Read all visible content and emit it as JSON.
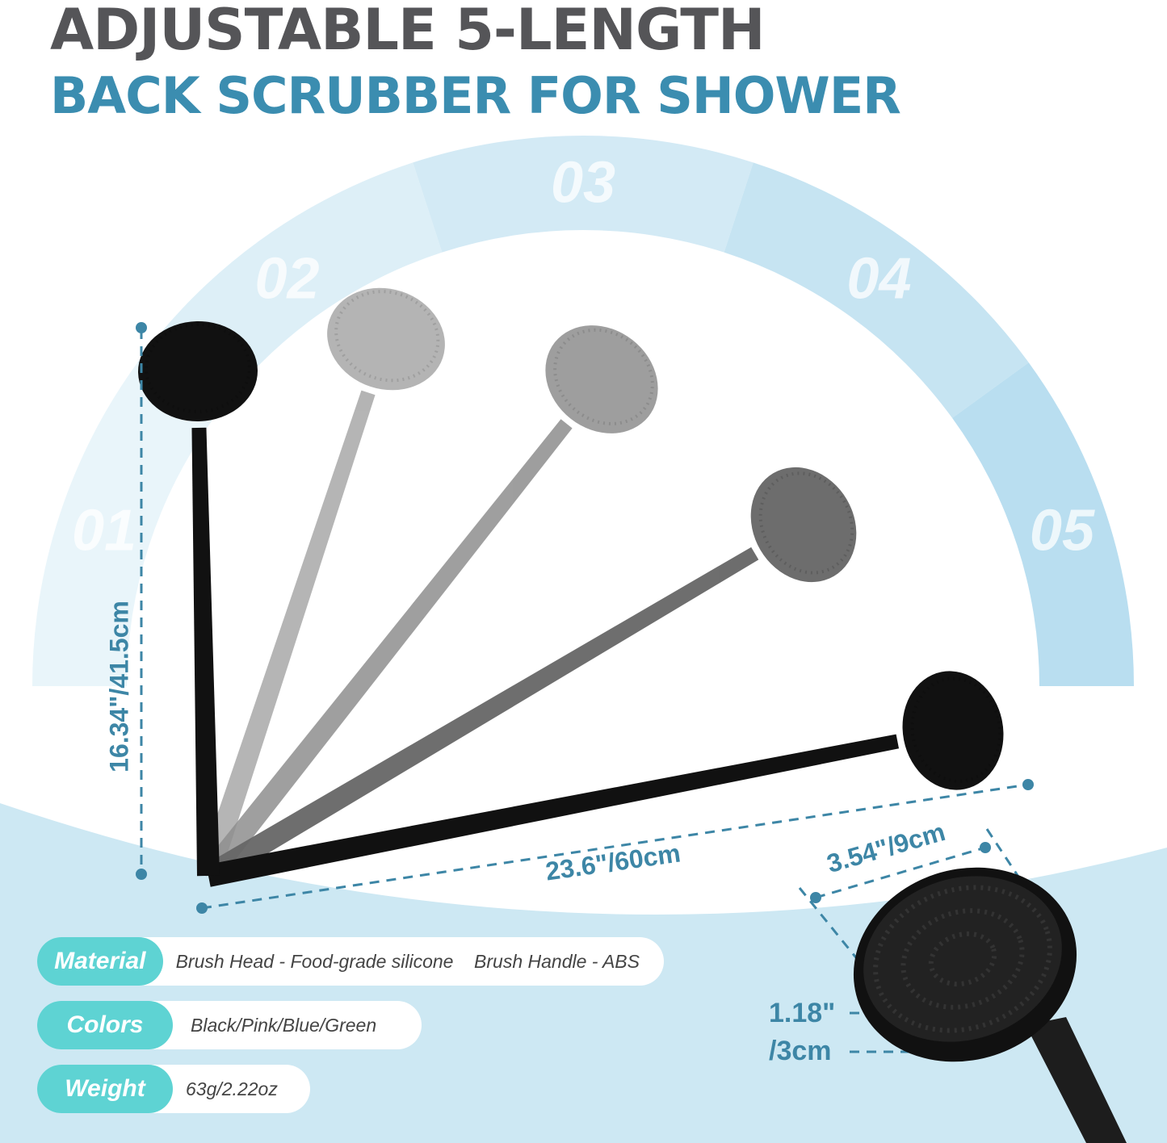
{
  "header": {
    "title": "ADJUSTABLE 5-LENGTH",
    "subtitle": "BACK SCRUBBER FOR SHOWER"
  },
  "length_positions": [
    "01",
    "02",
    "03",
    "04",
    "05"
  ],
  "dimensions": {
    "height": "16.34\"/41.5cm",
    "length": "23.6\"/60cm",
    "head_width": "3.54\"/9cm",
    "head_thickness_line1": "1.18\"",
    "head_thickness_line2": "/3cm"
  },
  "specs": [
    {
      "label": "Material",
      "value": "Brush Head - Food-grade silicone    Brush Handle - ABS"
    },
    {
      "label": "Colors",
      "value": "Black/Pink/Blue/Green"
    },
    {
      "label": "Weight",
      "value": "63g/2.22oz"
    }
  ],
  "colors": {
    "title": "#555558",
    "subtitle": "#3b8db0",
    "label_pill": "#5ed3d3",
    "dimension": "#3d86a6",
    "background_blue": "#cde8f3"
  }
}
